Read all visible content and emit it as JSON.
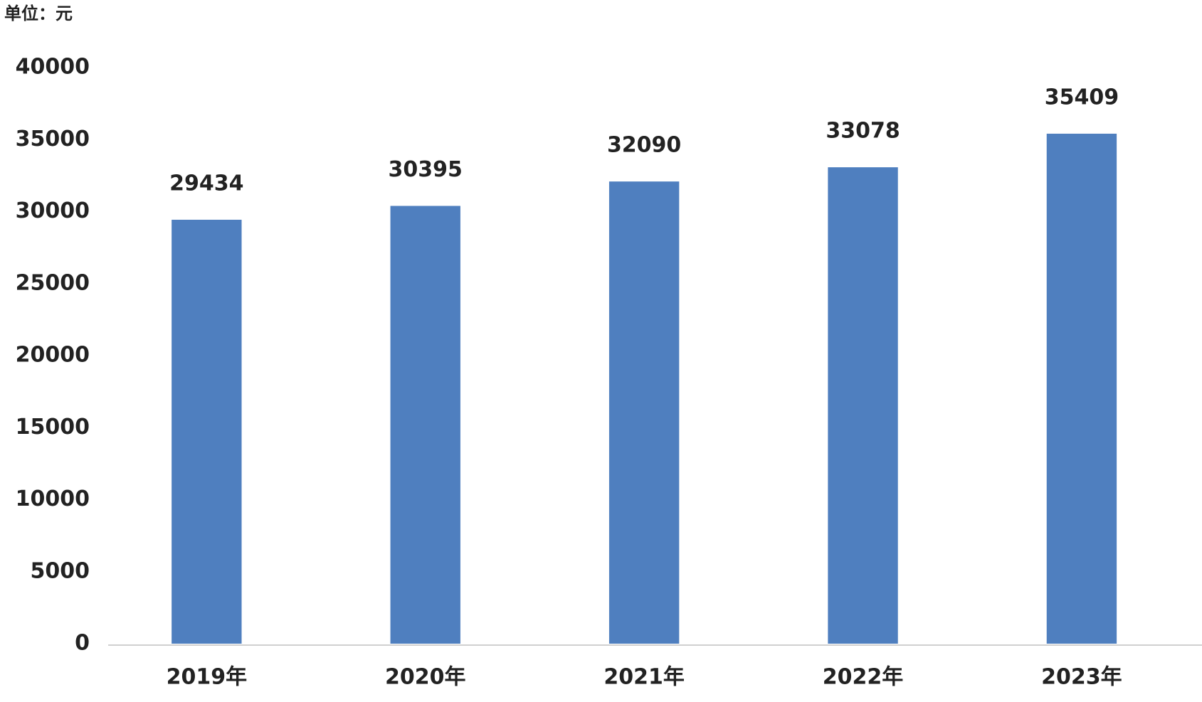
{
  "chart_data": {
    "type": "bar",
    "unit_label": "单位：元",
    "categories": [
      "2019年",
      "2020年",
      "2021年",
      "2022年",
      "2023年"
    ],
    "values": [
      29434,
      30395,
      32090,
      33078,
      35409
    ],
    "color": "#4f7fbf",
    "ylim": [
      0,
      40000
    ],
    "yticks": [
      0,
      5000,
      10000,
      15000,
      20000,
      25000,
      30000,
      35000,
      40000
    ],
    "grid": false
  }
}
